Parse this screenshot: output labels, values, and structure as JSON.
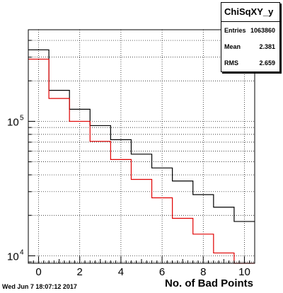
{
  "chart_data": {
    "type": "histogram",
    "bins": [
      0,
      1,
      2,
      3,
      4,
      5,
      6,
      7,
      8,
      9,
      10
    ],
    "x_range": [
      -0.5,
      10.5
    ],
    "y_range": [
      8800,
      480000
    ],
    "y_scale": "log",
    "xlabel": "No. of Bad Points",
    "x_ticks": [
      0,
      2,
      4,
      6,
      8,
      10
    ],
    "y_tick_labels": [
      {
        "value": 10000,
        "base": "10",
        "exp": "4"
      },
      {
        "value": 100000,
        "base": "10",
        "exp": "5"
      }
    ],
    "grid": true,
    "series": [
      {
        "color": "#000000",
        "values": [
          340000,
          170000,
          123000,
          93000,
          73000,
          57000,
          45000,
          36000,
          28500,
          23000,
          18000
        ]
      },
      {
        "color": "#e00000",
        "values": [
          290000,
          148000,
          100000,
          71000,
          52000,
          37000,
          27000,
          19000,
          14500,
          10500,
          8500
        ]
      }
    ]
  },
  "stats": {
    "title": "ChiSqXY_y",
    "rows": [
      {
        "label": "Entries",
        "value": "1063860"
      },
      {
        "label": "Mean",
        "value": "2.381"
      },
      {
        "label": "RMS",
        "value": "2.659"
      }
    ]
  },
  "footer": {
    "timestamp": "Wed Jun  7 18:07:12 2017"
  }
}
